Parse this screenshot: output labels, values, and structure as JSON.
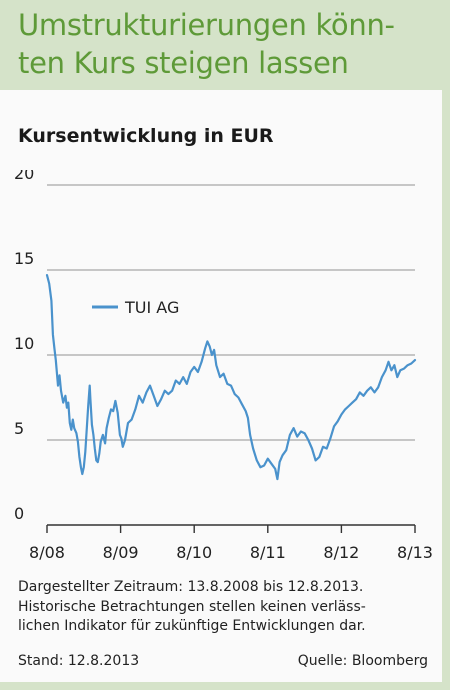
{
  "headline": "Umstrukturierungen könn-ten Kurs steigen lassen",
  "headline_lines": [
    "Umstrukturierungen könn-",
    "ten Kurs steigen lassen"
  ],
  "colors": {
    "accent": "#5e9a38",
    "header_bg": "#d5e3c9",
    "line": "#4a92cc",
    "grid": "#a8a8a8"
  },
  "chart_data": {
    "type": "line",
    "title": "Kursentwicklung in EUR",
    "xlabel": "",
    "ylabel": "",
    "ylim": [
      0,
      20
    ],
    "y_ticks": [
      0,
      5,
      10,
      15,
      20
    ],
    "x_ticks": [
      "8/08",
      "8/09",
      "8/10",
      "8/11",
      "8/12",
      "8/13"
    ],
    "grid": true,
    "legend_position": "top-left",
    "series": [
      {
        "name": "TUI AG",
        "color": "#4a92cc",
        "x_unit": "years since 8/08",
        "points": [
          [
            0.0,
            14.7
          ],
          [
            0.03,
            14.2
          ],
          [
            0.06,
            13.2
          ],
          [
            0.08,
            11.2
          ],
          [
            0.1,
            10.4
          ],
          [
            0.12,
            9.7
          ],
          [
            0.15,
            8.2
          ],
          [
            0.17,
            8.8
          ],
          [
            0.19,
            7.9
          ],
          [
            0.22,
            7.2
          ],
          [
            0.25,
            7.6
          ],
          [
            0.27,
            6.9
          ],
          [
            0.29,
            7.2
          ],
          [
            0.31,
            6.0
          ],
          [
            0.33,
            5.6
          ],
          [
            0.35,
            6.2
          ],
          [
            0.37,
            5.7
          ],
          [
            0.4,
            5.4
          ],
          [
            0.42,
            4.9
          ],
          [
            0.44,
            4.0
          ],
          [
            0.46,
            3.4
          ],
          [
            0.48,
            3.0
          ],
          [
            0.5,
            3.4
          ],
          [
            0.52,
            4.3
          ],
          [
            0.54,
            5.6
          ],
          [
            0.56,
            7.0
          ],
          [
            0.58,
            8.2
          ],
          [
            0.59,
            7.4
          ],
          [
            0.61,
            5.9
          ],
          [
            0.63,
            5.3
          ],
          [
            0.65,
            4.5
          ],
          [
            0.67,
            3.8
          ],
          [
            0.69,
            3.7
          ],
          [
            0.71,
            4.2
          ],
          [
            0.73,
            4.9
          ],
          [
            0.76,
            5.3
          ],
          [
            0.79,
            4.8
          ],
          [
            0.81,
            5.7
          ],
          [
            0.84,
            6.3
          ],
          [
            0.87,
            6.8
          ],
          [
            0.9,
            6.7
          ],
          [
            0.93,
            7.3
          ],
          [
            0.96,
            6.6
          ],
          [
            0.99,
            5.3
          ],
          [
            1.01,
            5.1
          ],
          [
            1.03,
            4.6
          ],
          [
            1.06,
            5.0
          ],
          [
            1.1,
            6.0
          ],
          [
            1.15,
            6.2
          ],
          [
            1.2,
            6.8
          ],
          [
            1.25,
            7.6
          ],
          [
            1.3,
            7.2
          ],
          [
            1.35,
            7.8
          ],
          [
            1.4,
            8.2
          ],
          [
            1.45,
            7.6
          ],
          [
            1.5,
            7.0
          ],
          [
            1.55,
            7.4
          ],
          [
            1.6,
            7.9
          ],
          [
            1.65,
            7.7
          ],
          [
            1.7,
            7.9
          ],
          [
            1.75,
            8.5
          ],
          [
            1.8,
            8.3
          ],
          [
            1.85,
            8.7
          ],
          [
            1.9,
            8.3
          ],
          [
            1.95,
            9.0
          ],
          [
            2.0,
            9.3
          ],
          [
            2.05,
            9.0
          ],
          [
            2.1,
            9.6
          ],
          [
            2.15,
            10.4
          ],
          [
            2.18,
            10.8
          ],
          [
            2.21,
            10.5
          ],
          [
            2.24,
            10.0
          ],
          [
            2.27,
            10.3
          ],
          [
            2.3,
            9.4
          ],
          [
            2.35,
            8.7
          ],
          [
            2.4,
            8.9
          ],
          [
            2.45,
            8.3
          ],
          [
            2.5,
            8.2
          ],
          [
            2.55,
            7.7
          ],
          [
            2.6,
            7.5
          ],
          [
            2.65,
            7.1
          ],
          [
            2.7,
            6.7
          ],
          [
            2.73,
            6.3
          ],
          [
            2.76,
            5.3
          ],
          [
            2.8,
            4.5
          ],
          [
            2.85,
            3.8
          ],
          [
            2.9,
            3.4
          ],
          [
            2.95,
            3.5
          ],
          [
            3.0,
            3.9
          ],
          [
            3.05,
            3.6
          ],
          [
            3.1,
            3.3
          ],
          [
            3.13,
            2.7
          ],
          [
            3.16,
            3.7
          ],
          [
            3.2,
            4.1
          ],
          [
            3.25,
            4.4
          ],
          [
            3.3,
            5.3
          ],
          [
            3.35,
            5.7
          ],
          [
            3.4,
            5.2
          ],
          [
            3.45,
            5.5
          ],
          [
            3.5,
            5.4
          ],
          [
            3.55,
            5.0
          ],
          [
            3.6,
            4.5
          ],
          [
            3.65,
            3.8
          ],
          [
            3.7,
            4.0
          ],
          [
            3.75,
            4.6
          ],
          [
            3.8,
            4.5
          ],
          [
            3.85,
            5.1
          ],
          [
            3.9,
            5.8
          ],
          [
            3.95,
            6.1
          ],
          [
            4.0,
            6.5
          ],
          [
            4.05,
            6.8
          ],
          [
            4.1,
            7.0
          ],
          [
            4.15,
            7.2
          ],
          [
            4.2,
            7.4
          ],
          [
            4.25,
            7.8
          ],
          [
            4.3,
            7.6
          ],
          [
            4.35,
            7.9
          ],
          [
            4.4,
            8.1
          ],
          [
            4.45,
            7.8
          ],
          [
            4.5,
            8.1
          ],
          [
            4.55,
            8.7
          ],
          [
            4.6,
            9.1
          ],
          [
            4.64,
            9.6
          ],
          [
            4.68,
            9.1
          ],
          [
            4.72,
            9.4
          ],
          [
            4.76,
            8.7
          ],
          [
            4.8,
            9.1
          ],
          [
            4.85,
            9.2
          ],
          [
            4.9,
            9.4
          ],
          [
            4.95,
            9.5
          ],
          [
            5.0,
            9.7
          ]
        ]
      }
    ]
  },
  "footnote": "Dargestellter Zeitraum: 13.8.2008 bis 12.8.2013. Historische Betrachtungen stellen keinen verläss-lichen Indikator für zukünftige Entwicklungen dar.",
  "footnote_lines": [
    "Dargestellter Zeitraum: 13.8.2008 bis 12.8.2013.",
    "Historische Betrachtungen stellen keinen verläss-",
    "lichen Indikator für zukünftige Entwicklungen dar."
  ],
  "stand": "Stand: 12.8.2013",
  "source": "Quelle: Bloomberg"
}
